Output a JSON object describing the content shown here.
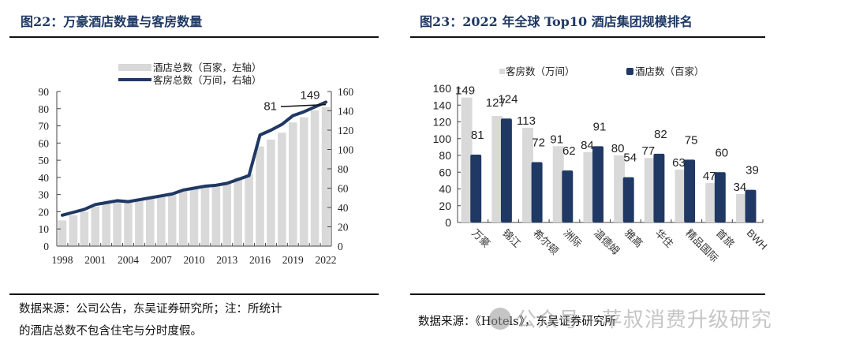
{
  "left": {
    "title": "图22：万豪酒店数量与客房数量",
    "source_line1": "数据来源：公司公告，东吴证券研究所；注：所统计",
    "source_line2": "的酒店总数不包含住宅与分时度假。"
  },
  "right": {
    "title": "图23：2022 年全球 Top10 酒店集团规模排名",
    "source": "数据来源：《Hotels》，东吴证券研究所"
  },
  "watermark": "公众号 · 苹叔消费升级研究",
  "colors": {
    "bar_gray": "#d9d9d9",
    "navy": "#1f3864",
    "title_navy": "#1f3864"
  },
  "chart_data": [
    {
      "type": "bar",
      "combo": "bar+line",
      "title": "万豪酒店数量与客房数量",
      "categories": [
        "1998",
        "1999",
        "2000",
        "2001",
        "2002",
        "2003",
        "2004",
        "2005",
        "2006",
        "2007",
        "2008",
        "2009",
        "2010",
        "2011",
        "2012",
        "2013",
        "2014",
        "2015",
        "2016",
        "2017",
        "2018",
        "2019",
        "2020",
        "2021",
        "2022"
      ],
      "xtick_labels": [
        "1998",
        "2001",
        "2004",
        "2007",
        "2010",
        "2013",
        "2016",
        "2019",
        "2022"
      ],
      "series": [
        {
          "name": "酒店总数（百家，左轴）",
          "kind": "bar",
          "axis": "left",
          "values": [
            15,
            18,
            20,
            23,
            25,
            26,
            26,
            27,
            28,
            29,
            31,
            33,
            34,
            35,
            36,
            37,
            40,
            42,
            58,
            62,
            66,
            72,
            75,
            79,
            81
          ]
        },
        {
          "name": "客房总数（万间，右轴）",
          "kind": "line",
          "axis": "right",
          "values": [
            32,
            35,
            38,
            43,
            45,
            47,
            46,
            48,
            50,
            52,
            54,
            58,
            60,
            62,
            63,
            65,
            69,
            73,
            115,
            120,
            126,
            135,
            139,
            144,
            149
          ]
        }
      ],
      "left_axis": {
        "min": 0,
        "max": 90,
        "ticks": [
          0,
          10,
          20,
          30,
          40,
          50,
          60,
          70,
          80,
          90
        ]
      },
      "right_axis": {
        "min": 0,
        "max": 160,
        "ticks": [
          0,
          20,
          40,
          60,
          80,
          100,
          120,
          140,
          160
        ]
      },
      "annotations": [
        {
          "text": "81",
          "series": "酒店总数（百家，左轴）",
          "category": "2022"
        },
        {
          "text": "149",
          "series": "客房总数（万间，右轴）",
          "category": "2022"
        }
      ],
      "legend": "top-center",
      "grid": false
    },
    {
      "type": "bar",
      "title": "2022 年全球 Top10 酒店集团规模排名",
      "categories": [
        "万豪",
        "锦江",
        "希尔顿",
        "洲际",
        "温德姆",
        "雅高",
        "华住",
        "精品国际",
        "首旅",
        "BWH"
      ],
      "series": [
        {
          "name": "客房数（万间）",
          "values": [
            149,
            127,
            113,
            91,
            84,
            80,
            77,
            63,
            47,
            34
          ]
        },
        {
          "name": "酒店数（百家）",
          "values": [
            81,
            124,
            72,
            62,
            91,
            54,
            82,
            75,
            60,
            39
          ]
        }
      ],
      "y_axis": {
        "min": 0,
        "max": 160,
        "ticks": [
          0,
          20,
          40,
          60,
          80,
          100,
          120,
          140,
          160
        ]
      },
      "legend": "top-center",
      "grid": false
    }
  ]
}
